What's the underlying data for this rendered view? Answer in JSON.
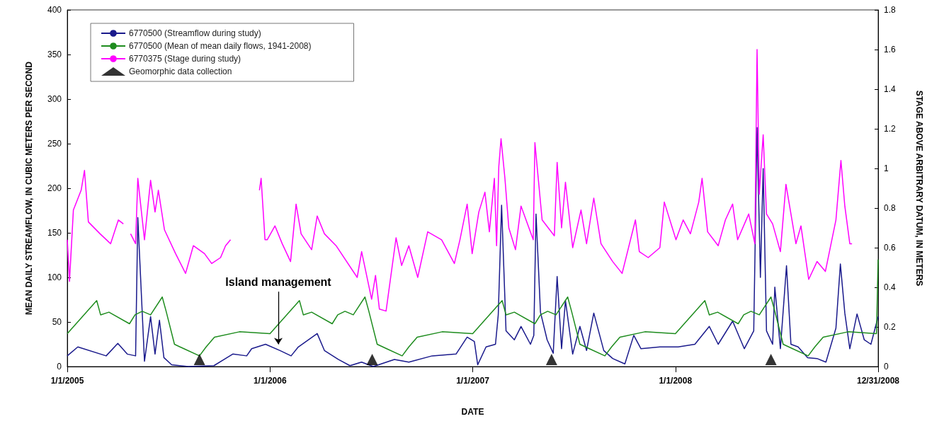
{
  "chart_data": {
    "type": "line",
    "xlabel": "DATE",
    "ylabel": "MEAN DAILY STREAMFLOW, IN CUBIC METERS PER SECOND",
    "y2label": "STAGE ABOVE ARBITRARY DATUM, IN METERS",
    "xlim": [
      "2005-01-01",
      "2008-12-31"
    ],
    "xticks": [
      {
        "value": "2005-01-01",
        "label": "1/1/2005"
      },
      {
        "value": "2006-01-01",
        "label": "1/1/2006"
      },
      {
        "value": "2007-01-01",
        "label": "1/1/2007"
      },
      {
        "value": "2008-01-01",
        "label": "1/1/2008"
      },
      {
        "value": "2008-12-31",
        "label": "12/31/2008"
      }
    ],
    "ylim": [
      0,
      400
    ],
    "yticks": [
      0,
      50,
      100,
      150,
      200,
      250,
      300,
      350,
      400
    ],
    "y2lim": [
      0,
      1.8
    ],
    "y2ticks": [
      0,
      0.2,
      0.4,
      0.6,
      0.8,
      1,
      1.2,
      1.4,
      1.6,
      1.8
    ],
    "grid": false,
    "legend": "top left",
    "marker": "none",
    "line_style": "solid",
    "annotations": [
      {
        "text": "Island management",
        "x": "2006-01-16",
        "y": 22
      }
    ],
    "series": [
      {
        "name": "6770500 (Streamflow during study)",
        "color": "#1a1a8c",
        "x": [
          "2005-01-01",
          "2005-01-20",
          "2005-03-12",
          "2005-04-02",
          "2005-04-19",
          "2005-05-04",
          "2005-05-08",
          "2005-05-20",
          "2005-05-31",
          "2005-06-08",
          "2005-06-16",
          "2005-06-24",
          "2005-07-08",
          "2005-08-07",
          "2005-09-22",
          "2005-10-26",
          "2005-11-20",
          "2005-11-29",
          "2005-12-24",
          "2006-01-19",
          "2006-02-08",
          "2006-02-21",
          "2006-03-27",
          "2006-04-09",
          "2006-05-04",
          "2006-05-25",
          "2006-06-15",
          "2006-07-06",
          "2006-08-13",
          "2006-09-08",
          "2006-10-20",
          "2006-12-02",
          "2006-12-22",
          "2007-01-04",
          "2007-01-10",
          "2007-01-25",
          "2007-02-11",
          "2007-02-16",
          "2007-02-22",
          "2007-03-02",
          "2007-03-17",
          "2007-03-29",
          "2007-04-15",
          "2007-04-21",
          "2007-04-25",
          "2007-05-03",
          "2007-05-15",
          "2007-05-26",
          "2007-06-02",
          "2007-06-10",
          "2007-06-17",
          "2007-06-30",
          "2007-07-13",
          "2007-07-25",
          "2007-08-07",
          "2007-08-25",
          "2007-09-10",
          "2007-10-02",
          "2007-10-18",
          "2007-10-31",
          "2007-12-04",
          "2008-01-06",
          "2008-02-05",
          "2008-03-02",
          "2008-03-18",
          "2008-04-13",
          "2008-05-04",
          "2008-05-21",
          "2008-05-27",
          "2008-06-02",
          "2008-06-07",
          "2008-06-13",
          "2008-06-24",
          "2008-06-28",
          "2008-07-08",
          "2008-07-19",
          "2008-07-27",
          "2008-08-09",
          "2008-08-26",
          "2008-09-12",
          "2008-09-28",
          "2008-10-16",
          "2008-10-24",
          "2008-11-01",
          "2008-11-10",
          "2008-11-23",
          "2008-12-06",
          "2008-12-18",
          "2008-12-31"
        ],
        "values": [
          12,
          22,
          12,
          26,
          14,
          12,
          167,
          6,
          56,
          14,
          52,
          10,
          2,
          0,
          1,
          14,
          12,
          20,
          25,
          18,
          12,
          22,
          37,
          18,
          8,
          1,
          5,
          0,
          8,
          5,
          12,
          14,
          33,
          28,
          2,
          22,
          25,
          58,
          181,
          40,
          30,
          45,
          25,
          35,
          171,
          61,
          30,
          15,
          101,
          20,
          74,
          14,
          45,
          18,
          60,
          18,
          9,
          3,
          35,
          20,
          22,
          22,
          25,
          45,
          25,
          51,
          20,
          40,
          268,
          100,
          222,
          40,
          25,
          89,
          20,
          113,
          25,
          22,
          10,
          9,
          5,
          43,
          115,
          60,
          20,
          59,
          30,
          25,
          56
        ]
      },
      {
        "name": "6770500 (Mean of mean daily flows, 1941-2008)",
        "color": "#1e8c1e",
        "x": [
          "2005-01-01",
          "2005-02-23",
          "2005-03-02",
          "2005-03-17",
          "2005-04-23",
          "2005-05-03",
          "2005-05-16",
          "2005-05-31",
          "2005-06-21",
          "2005-06-28",
          "2005-07-13",
          "2005-07-30",
          "2005-08-27",
          "2005-09-08",
          "2005-09-23",
          "2005-11-07",
          "2006-01-01",
          "2006-02-23",
          "2006-03-02",
          "2006-03-17",
          "2006-04-23",
          "2006-05-03",
          "2006-05-16",
          "2006-05-31",
          "2006-06-21",
          "2006-06-28",
          "2006-07-13",
          "2006-07-30",
          "2006-08-27",
          "2006-09-08",
          "2006-09-23",
          "2006-11-07",
          "2007-01-01",
          "2007-02-23",
          "2007-03-02",
          "2007-03-17",
          "2007-04-23",
          "2007-05-03",
          "2007-05-16",
          "2007-05-31",
          "2007-06-21",
          "2007-06-28",
          "2007-07-13",
          "2007-07-30",
          "2007-08-27",
          "2007-09-08",
          "2007-09-23",
          "2007-11-07",
          "2008-01-01",
          "2008-02-23",
          "2008-03-02",
          "2008-03-17",
          "2008-04-23",
          "2008-05-03",
          "2008-05-16",
          "2008-05-31",
          "2008-06-21",
          "2008-06-28",
          "2008-07-13",
          "2008-07-30",
          "2008-08-27",
          "2008-09-08",
          "2008-09-23",
          "2008-11-07",
          "2008-12-28",
          "2008-12-31"
        ],
        "values": [
          37,
          74,
          58,
          61,
          48,
          58,
          62,
          58,
          78,
          62,
          25,
          20,
          12,
          22,
          33,
          39,
          37,
          74,
          58,
          61,
          48,
          58,
          62,
          58,
          78,
          62,
          25,
          20,
          12,
          22,
          33,
          39,
          37,
          74,
          58,
          61,
          48,
          58,
          62,
          58,
          78,
          62,
          25,
          20,
          12,
          22,
          33,
          39,
          37,
          74,
          58,
          61,
          48,
          58,
          62,
          58,
          78,
          62,
          25,
          20,
          12,
          22,
          33,
          39,
          37,
          120
        ]
      },
      {
        "name": "6770375 (Stage during study)",
        "color": "#ff00ff",
        "axis": "y2",
        "x": [
          "2005-01-01",
          "2005-01-05",
          "2005-01-12",
          "2005-01-26",
          "2005-02-01",
          "2005-02-08",
          "2005-03-01",
          "2005-03-20",
          "2005-04-03",
          "2005-04-12",
          "2005-04-18",
          "2005-04-25",
          "2005-05-04",
          "2005-05-08",
          "2005-05-20",
          "2005-05-31",
          "2005-06-08",
          "2005-06-14",
          "2005-06-25",
          "2005-07-15",
          "2005-08-02",
          "2005-08-16",
          "2005-09-05",
          "2005-09-18",
          "2005-10-04",
          "2005-10-13",
          "2005-10-22",
          "2005-11-15",
          "2005-12-13",
          "2005-12-16",
          "2005-12-23",
          "2005-12-27",
          "2006-01-10",
          "2006-01-23",
          "2006-02-07",
          "2006-02-17",
          "2006-02-26",
          "2006-03-17",
          "2006-03-27",
          "2006-04-09",
          "2006-04-30",
          "2006-06-07",
          "2006-06-15",
          "2006-07-03",
          "2006-07-10",
          "2006-07-17",
          "2006-07-29",
          "2006-08-16",
          "2006-08-26",
          "2006-09-08",
          "2006-09-24",
          "2006-10-12",
          "2006-11-06",
          "2006-11-29",
          "2006-12-09",
          "2006-12-22",
          "2006-12-31",
          "2007-01-12",
          "2007-01-23",
          "2007-01-31",
          "2007-02-09",
          "2007-02-13",
          "2007-02-17",
          "2007-02-21",
          "2007-02-28",
          "2007-03-07",
          "2007-03-19",
          "2007-03-29",
          "2007-04-20",
          "2007-04-23",
          "2007-05-06",
          "2007-05-28",
          "2007-06-02",
          "2007-06-10",
          "2007-06-17",
          "2007-06-30",
          "2007-07-15",
          "2007-07-25",
          "2007-08-07",
          "2007-08-20",
          "2007-09-10",
          "2007-09-27",
          "2007-10-21",
          "2007-10-28",
          "2007-11-13",
          "2007-12-04",
          "2007-12-12",
          "2008-01-02",
          "2008-01-15",
          "2008-01-28",
          "2008-02-12",
          "2008-02-18",
          "2008-02-28",
          "2008-03-18",
          "2008-03-31",
          "2008-04-13",
          "2008-04-22",
          "2008-05-12",
          "2008-05-23",
          "2008-05-27",
          "2008-05-31",
          "2008-06-07",
          "2008-06-13",
          "2008-06-24",
          "2008-07-08",
          "2008-07-18",
          "2008-08-05",
          "2008-08-14",
          "2008-08-28",
          "2008-09-12",
          "2008-09-27",
          "2008-10-16",
          "2008-10-25",
          "2008-11-01",
          "2008-11-10",
          "2008-11-14"
        ],
        "values": [
          0.64,
          0.43,
          0.79,
          0.89,
          0.99,
          0.73,
          0.67,
          0.62,
          0.74,
          0.72,
          null,
          0.67,
          0.62,
          0.95,
          0.64,
          0.94,
          0.78,
          0.89,
          0.69,
          0.57,
          0.47,
          0.61,
          0.57,
          0.52,
          0.55,
          0.61,
          0.64,
          null,
          0.89,
          0.95,
          0.64,
          0.64,
          0.71,
          0.62,
          0.53,
          0.82,
          0.67,
          0.59,
          0.76,
          0.67,
          0.61,
          0.45,
          0.58,
          0.34,
          0.46,
          0.29,
          0.28,
          0.65,
          0.51,
          0.61,
          0.45,
          0.68,
          0.64,
          0.52,
          0.64,
          0.82,
          0.57,
          0.78,
          0.88,
          0.68,
          0.95,
          0.61,
          1.01,
          1.15,
          0.95,
          0.7,
          0.59,
          0.81,
          0.64,
          1.13,
          0.74,
          0.66,
          1.03,
          0.7,
          0.93,
          0.6,
          0.79,
          0.62,
          0.85,
          0.62,
          0.53,
          0.47,
          0.74,
          0.58,
          0.55,
          0.6,
          0.83,
          0.64,
          0.74,
          0.67,
          0.83,
          0.95,
          0.68,
          0.61,
          0.74,
          0.82,
          0.64,
          0.77,
          0.62,
          1.6,
          0.87,
          1.17,
          0.77,
          0.72,
          0.58,
          0.92,
          0.62,
          0.71,
          0.44,
          0.53,
          0.48,
          0.74,
          1.04,
          0.81,
          0.62,
          0.62
        ]
      },
      {
        "name": "Geomorphic data collection",
        "type": "scatter",
        "marker": "triangle",
        "color": "#000000",
        "x": [
          "2005-08-27",
          "2006-07-04",
          "2007-05-23",
          "2008-06-21"
        ],
        "values": [
          8,
          8,
          8,
          8
        ]
      }
    ]
  }
}
